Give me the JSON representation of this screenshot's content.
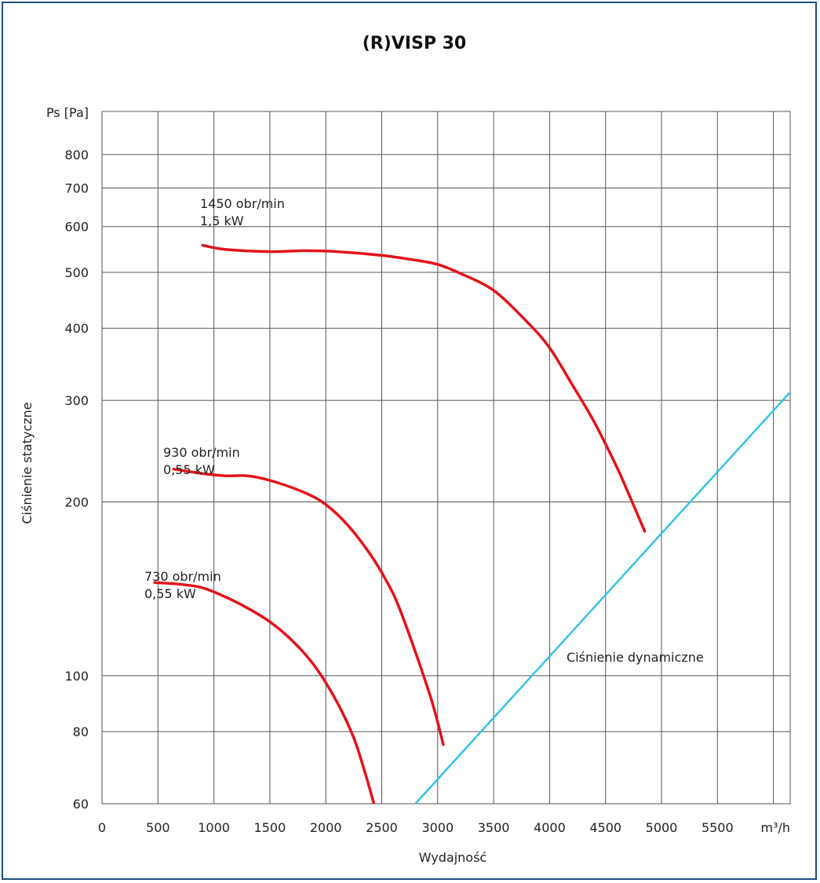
{
  "chart_data": {
    "type": "line",
    "title": "(R)VISP 30",
    "xlabel": "Wydajność",
    "ylabel": "Ciśnienie statyczne",
    "x_unit": "m³/h",
    "y_unit": "Ps [Pa]",
    "xlim": [
      0,
      6150
    ],
    "ylim": [
      60,
      950
    ],
    "y_scale": "log",
    "grid": true,
    "x_ticks": [
      0,
      500,
      1000,
      1500,
      2000,
      2500,
      3000,
      3500,
      4000,
      4500,
      5000,
      5500
    ],
    "x_tick_labels": [
      "0",
      "500",
      "1000",
      "1500",
      "2000",
      "2500",
      "3000",
      "3500",
      "4000",
      "4500",
      "5000",
      "5500"
    ],
    "y_ticks": [
      60,
      80,
      100,
      200,
      300,
      400,
      500,
      600,
      700,
      800
    ],
    "y_tick_labels": [
      "60",
      "80",
      "100",
      "200",
      "300",
      "400",
      "500",
      "600",
      "700",
      "800"
    ],
    "colors": {
      "fan_curve": "#e3131b",
      "dynamic_line": "#35c2ea",
      "grid": "#555555",
      "frame": "#1e4f7f"
    },
    "series": [
      {
        "label_lines": [
          "1450 obr/min",
          "1,5 kW"
        ],
        "color": "#e3131b",
        "x": [
          900,
          1100,
          1500,
          1800,
          2100,
          2500,
          2800,
          3000,
          3200,
          3500,
          3800,
          4000,
          4200,
          4400,
          4600,
          4700,
          4850
        ],
        "y": [
          557,
          548,
          543,
          545,
          543,
          535,
          525,
          516,
          498,
          465,
          410,
          370,
          320,
          275,
          230,
          208,
          178
        ]
      },
      {
        "label_lines": [
          "930 obr/min",
          "0,55 kW"
        ],
        "color": "#e3131b",
        "x": [
          640,
          900,
          1100,
          1300,
          1500,
          1800,
          2000,
          2200,
          2400,
          2550,
          2650,
          2800,
          2950,
          3050
        ],
        "y": [
          228,
          224,
          222,
          222,
          218,
          208,
          198,
          182,
          162,
          145,
          132,
          110,
          90,
          76
        ]
      },
      {
        "label_lines": [
          "730 obr/min",
          "0,55 kW"
        ],
        "color": "#e3131b",
        "x": [
          470,
          700,
          900,
          1100,
          1300,
          1500,
          1700,
          1900,
          2100,
          2250,
          2350,
          2430
        ],
        "y": [
          145,
          144,
          142,
          137,
          131,
          124,
          115,
          104,
          90,
          78,
          68,
          60
        ]
      },
      {
        "label_lines": [
          "Ciśnienie dynamiczne"
        ],
        "color": "#35c2ea",
        "x": [
          2800,
          6150
        ],
        "y": [
          60,
          310
        ]
      }
    ]
  }
}
